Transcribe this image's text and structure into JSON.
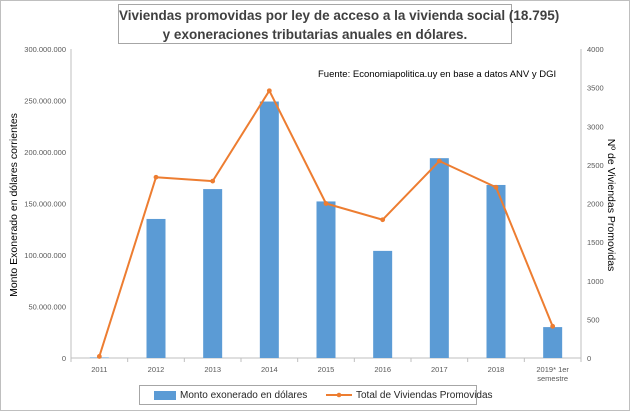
{
  "chart_data": {
    "type": "bar",
    "title_line1": "Viviendas  promovidas  por  ley de  acceso  a la vivienda  social  (18.795)",
    "title_line2": "y exoneraciones  tributarias   anuales  en  dólares.",
    "source_note": "Fuente: Economiapolitica.uy en base a datos ANV y DGI",
    "categories": [
      "2011",
      "2012",
      "2013",
      "2014",
      "2015",
      "2016",
      "2017",
      "2018",
      "2019* 1er semestre"
    ],
    "category_lines": [
      [
        "2011"
      ],
      [
        "2012"
      ],
      [
        "2013"
      ],
      [
        "2014"
      ],
      [
        "2015"
      ],
      [
        "2016"
      ],
      [
        "2017"
      ],
      [
        "2018"
      ],
      [
        "2019* 1er",
        "semestre"
      ]
    ],
    "ylabel_left": "Monto Exonerado en dólares corrientes",
    "ylabel_right": "Nº de Viviendas Promovidas",
    "ylim_left": [
      0,
      300000000
    ],
    "ylim_right": [
      0,
      4000
    ],
    "yticks_left": [
      "0",
      "50.000.000",
      "100.000.000",
      "150.000.000",
      "200.000.000",
      "250.000.000",
      "300.000.000"
    ],
    "yticks_right": [
      "0",
      "500",
      "1000",
      "1500",
      "2000",
      "2500",
      "3000",
      "3500",
      "4000"
    ],
    "grid": false,
    "legend_position": "bottom",
    "series": [
      {
        "name": "Monto exonerado en dólares",
        "kind": "bar",
        "axis": "left",
        "color": "#5b9bd5",
        "values": [
          500000,
          135000000,
          164000000,
          249000000,
          152000000,
          104000000,
          194000000,
          168000000,
          30000000
        ]
      },
      {
        "name": "Total de Viviendas Promovidas",
        "kind": "line",
        "axis": "right",
        "color": "#ed7d31",
        "values": [
          20,
          2340,
          2290,
          3460,
          2000,
          1790,
          2550,
          2210,
          410
        ]
      }
    ]
  }
}
